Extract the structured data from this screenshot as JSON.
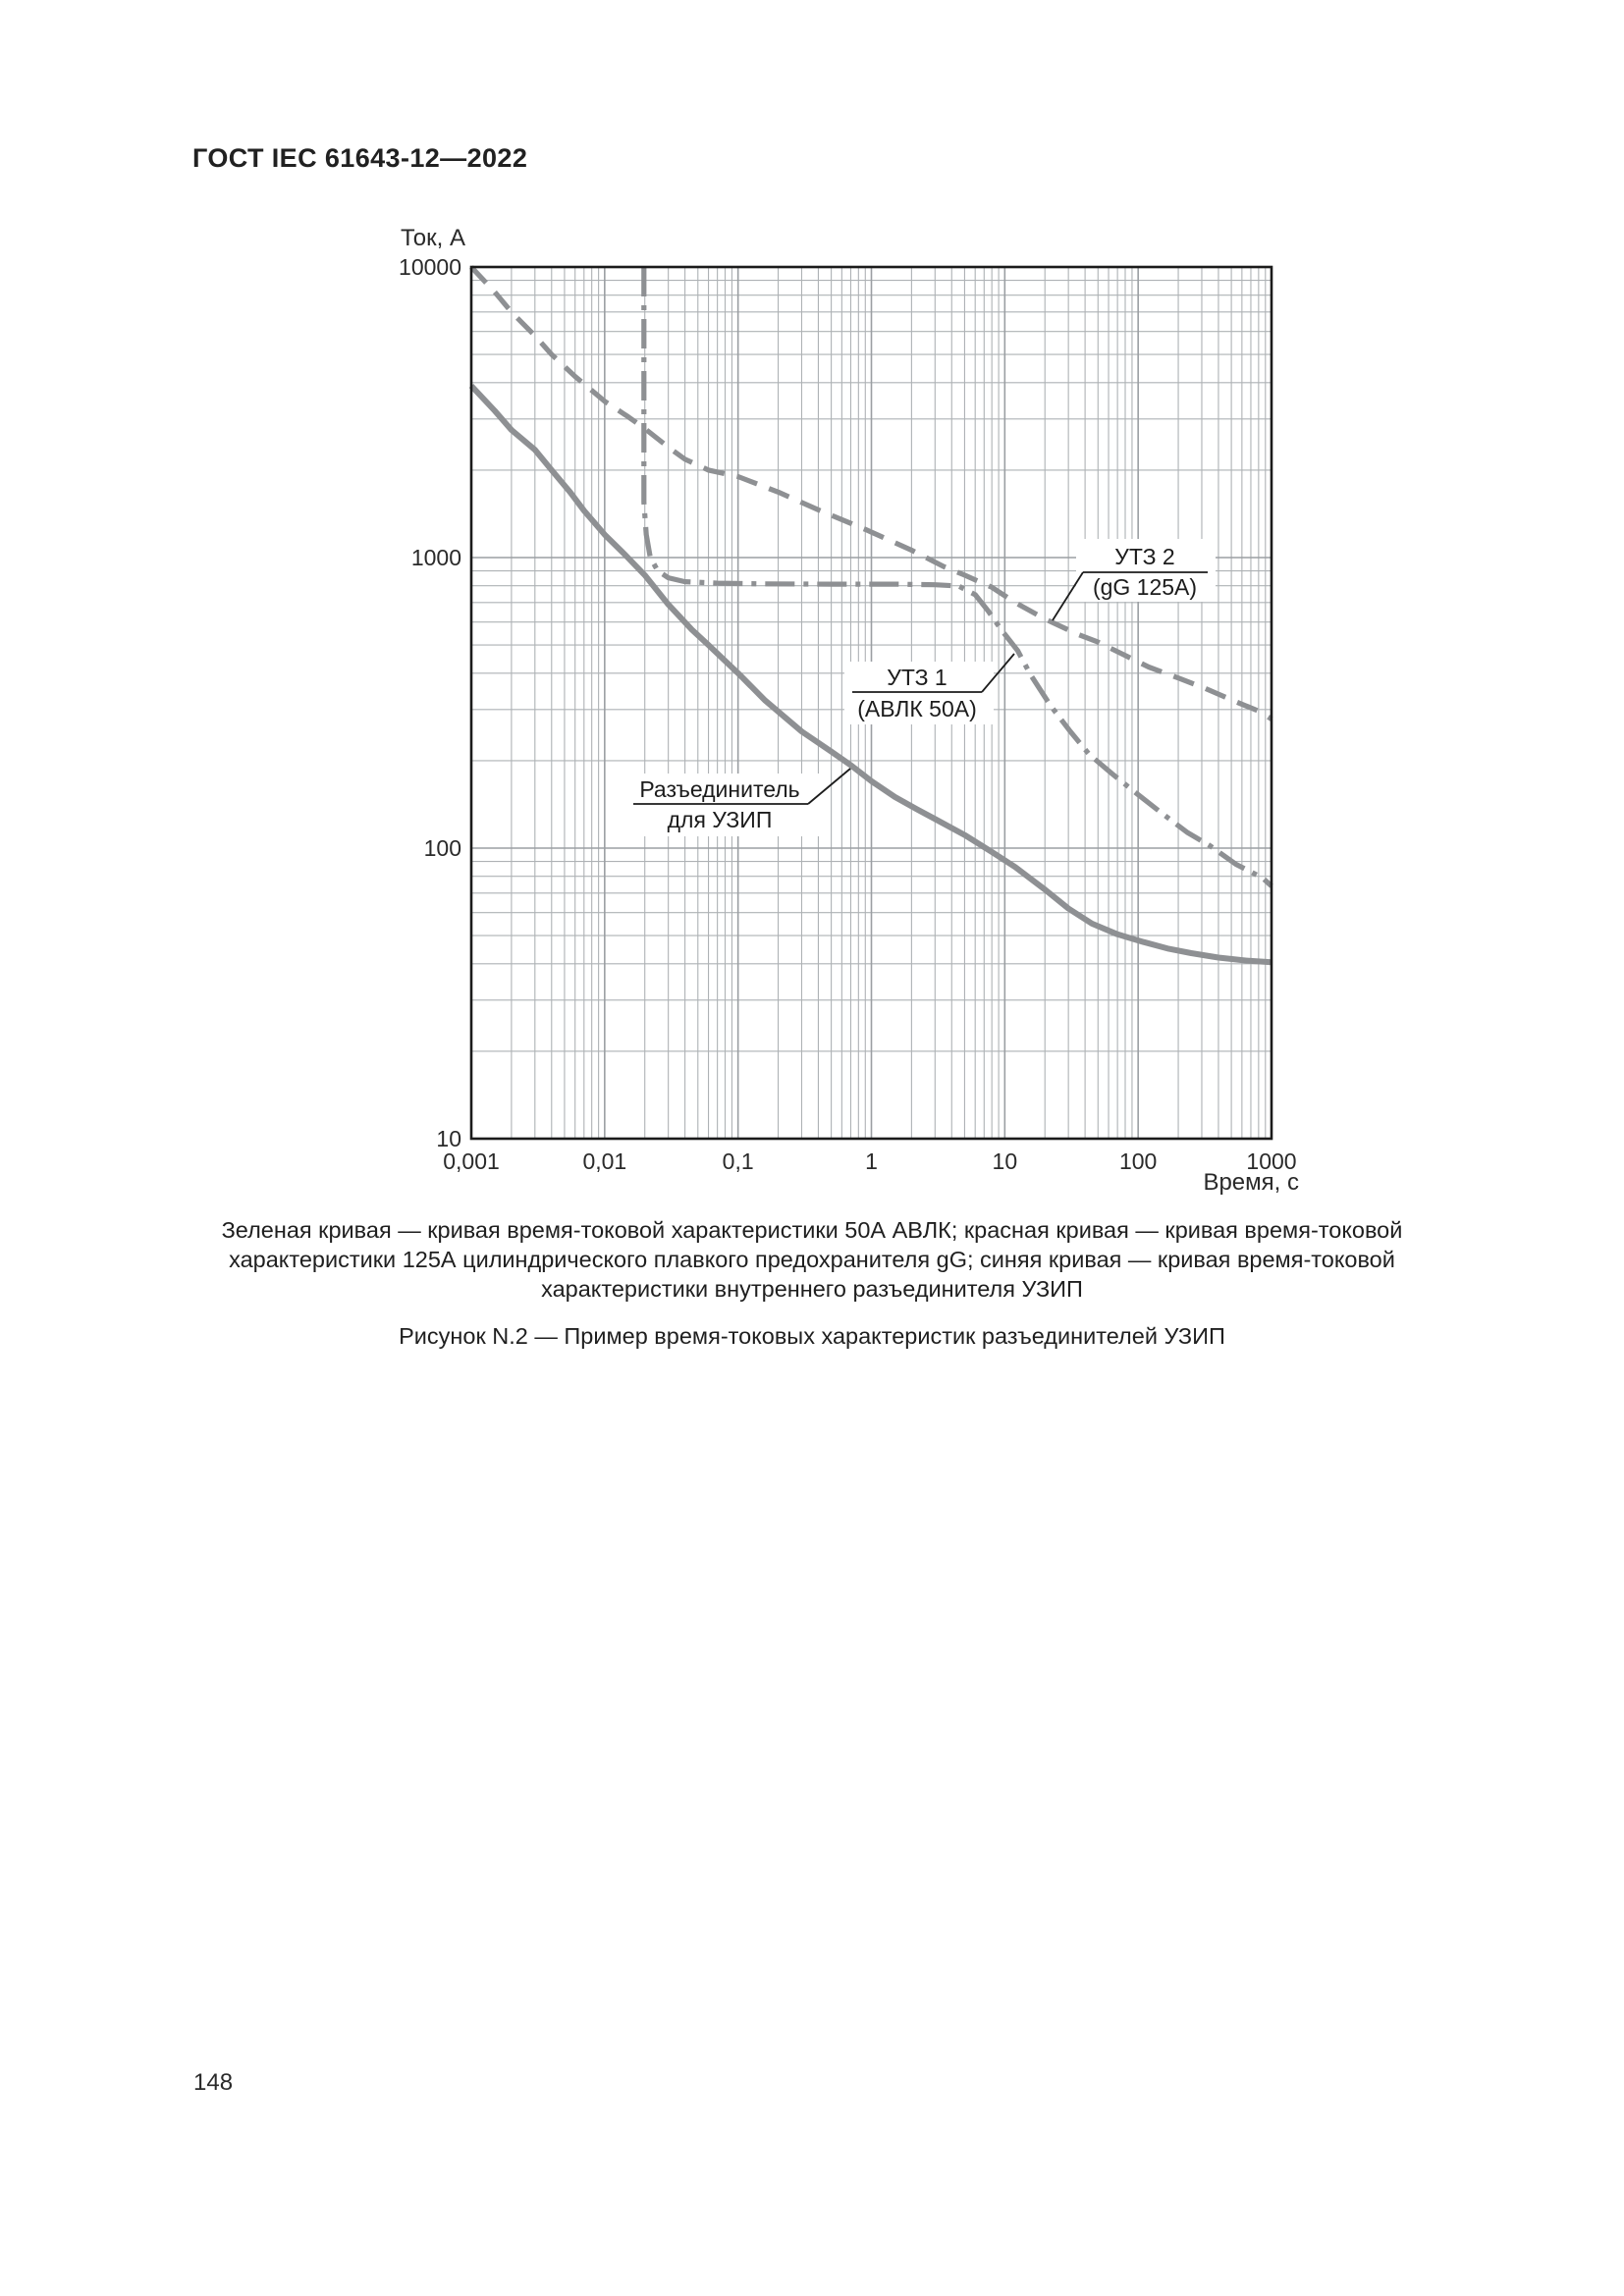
{
  "page": {
    "header": "ГОСТ IEC 61643-12—2022",
    "caption_lines": [
      "Зеленая кривая — кривая время-токовой характеристики 50А АВЛК; красная кривая — кривая время-токовой",
      "характеристики 125А цилиндрического плавкого предохранителя gG; синяя кривая — кривая время-токовой",
      "характеристики внутреннего разъединителя УЗИП"
    ],
    "figure_caption": "Рисунок N.2 — Пример время-токовых характеристик разъединителей УЗИП",
    "page_number": "148"
  },
  "chart_data": {
    "type": "line",
    "title": "",
    "xlabel": "Время, с",
    "ylabel": "Ток, А",
    "x_scale": "log",
    "y_scale": "log",
    "xlim": [
      0.001,
      1000
    ],
    "ylim": [
      10,
      10000
    ],
    "x_tick_values": [
      0.001,
      0.01,
      0.1,
      1,
      10,
      100,
      1000
    ],
    "x_tick_labels": [
      "0,001",
      "0,01",
      "0,1",
      "1",
      "10",
      "100",
      "1000"
    ],
    "y_tick_values": [
      10,
      100,
      1000,
      10000
    ],
    "y_tick_labels": [
      "10",
      "100",
      "1000",
      "10000"
    ],
    "grid": "log major + minor, both axes",
    "curve_color": "#8e9093",
    "series": [
      {
        "id": "disconnector",
        "name": "Разъединитель для УЗИП",
        "style": "solid",
        "points": [
          [
            0.001,
            3900
          ],
          [
            0.0015,
            3200
          ],
          [
            0.002,
            2750
          ],
          [
            0.003,
            2350
          ],
          [
            0.004,
            2000
          ],
          [
            0.0055,
            1680
          ],
          [
            0.007,
            1450
          ],
          [
            0.01,
            1200
          ],
          [
            0.014,
            1030
          ],
          [
            0.02,
            870
          ],
          [
            0.03,
            690
          ],
          [
            0.045,
            565
          ],
          [
            0.06,
            500
          ],
          [
            0.1,
            400
          ],
          [
            0.16,
            322
          ],
          [
            0.3,
            252
          ],
          [
            0.5,
            215
          ],
          [
            0.7,
            193
          ],
          [
            1,
            170
          ],
          [
            1.5,
            150
          ],
          [
            2.2,
            136
          ],
          [
            3,
            126
          ],
          [
            5,
            111
          ],
          [
            8,
            97
          ],
          [
            12,
            86
          ],
          [
            20,
            72
          ],
          [
            30,
            62
          ],
          [
            45,
            55
          ],
          [
            70,
            50.5
          ],
          [
            110,
            47.5
          ],
          [
            170,
            45
          ],
          [
            250,
            43.5
          ],
          [
            400,
            42
          ],
          [
            650,
            41
          ],
          [
            1000,
            40.5
          ]
        ]
      },
      {
        "id": "utz1",
        "name": "УТЗ 1 (АВЛК 50А)",
        "style": "dashdot",
        "points": [
          [
            0.0197,
            10000
          ],
          [
            0.0197,
            1550
          ],
          [
            0.0205,
            1200
          ],
          [
            0.022,
            1000
          ],
          [
            0.025,
            900
          ],
          [
            0.03,
            852
          ],
          [
            0.04,
            826
          ],
          [
            0.07,
            816
          ],
          [
            0.15,
            812
          ],
          [
            0.5,
            810
          ],
          [
            1.5,
            810
          ],
          [
            3,
            806
          ],
          [
            4.5,
            798
          ],
          [
            6,
            745
          ],
          [
            7.5,
            655
          ],
          [
            9.4,
            565
          ],
          [
            12.5,
            478
          ],
          [
            15.6,
            395
          ],
          [
            22,
            310
          ],
          [
            31,
            252
          ],
          [
            43,
            210
          ],
          [
            64,
            180
          ],
          [
            96,
            155
          ],
          [
            150,
            132
          ],
          [
            235,
            113
          ],
          [
            345,
            102
          ],
          [
            540,
            88
          ],
          [
            855,
            79
          ],
          [
            1000,
            74
          ]
        ]
      },
      {
        "id": "utz2",
        "name": "УТЗ 2 (gG 125А)",
        "style": "dashed",
        "points": [
          [
            0.001,
            10000
          ],
          [
            0.0015,
            8200
          ],
          [
            0.002,
            7000
          ],
          [
            0.003,
            5800
          ],
          [
            0.004,
            5000
          ],
          [
            0.006,
            4200
          ],
          [
            0.01,
            3450
          ],
          [
            0.015,
            3050
          ],
          [
            0.02,
            2780
          ],
          [
            0.03,
            2400
          ],
          [
            0.04,
            2180
          ],
          [
            0.06,
            2000
          ],
          [
            0.1,
            1900
          ],
          [
            0.2,
            1680
          ],
          [
            0.4,
            1460
          ],
          [
            0.9,
            1250
          ],
          [
            2,
            1060
          ],
          [
            3.5,
            930
          ],
          [
            5,
            870
          ],
          [
            8,
            790
          ],
          [
            12,
            700
          ],
          [
            20,
            615
          ],
          [
            35,
            545
          ],
          [
            50,
            512
          ],
          [
            120,
            420
          ],
          [
            200,
            385
          ],
          [
            316,
            355
          ],
          [
            550,
            318
          ],
          [
            820,
            295
          ],
          [
            1000,
            278
          ]
        ]
      }
    ],
    "annotations": [
      {
        "id": "utz2",
        "line1": "УТЗ 2",
        "line2": "(gG 125А)"
      },
      {
        "id": "utz1",
        "line1": "УТЗ 1",
        "line2": "(АВЛК 50А)"
      },
      {
        "id": "disconnector",
        "line1": "Разъединитель",
        "line2": "для УЗИП"
      }
    ]
  }
}
